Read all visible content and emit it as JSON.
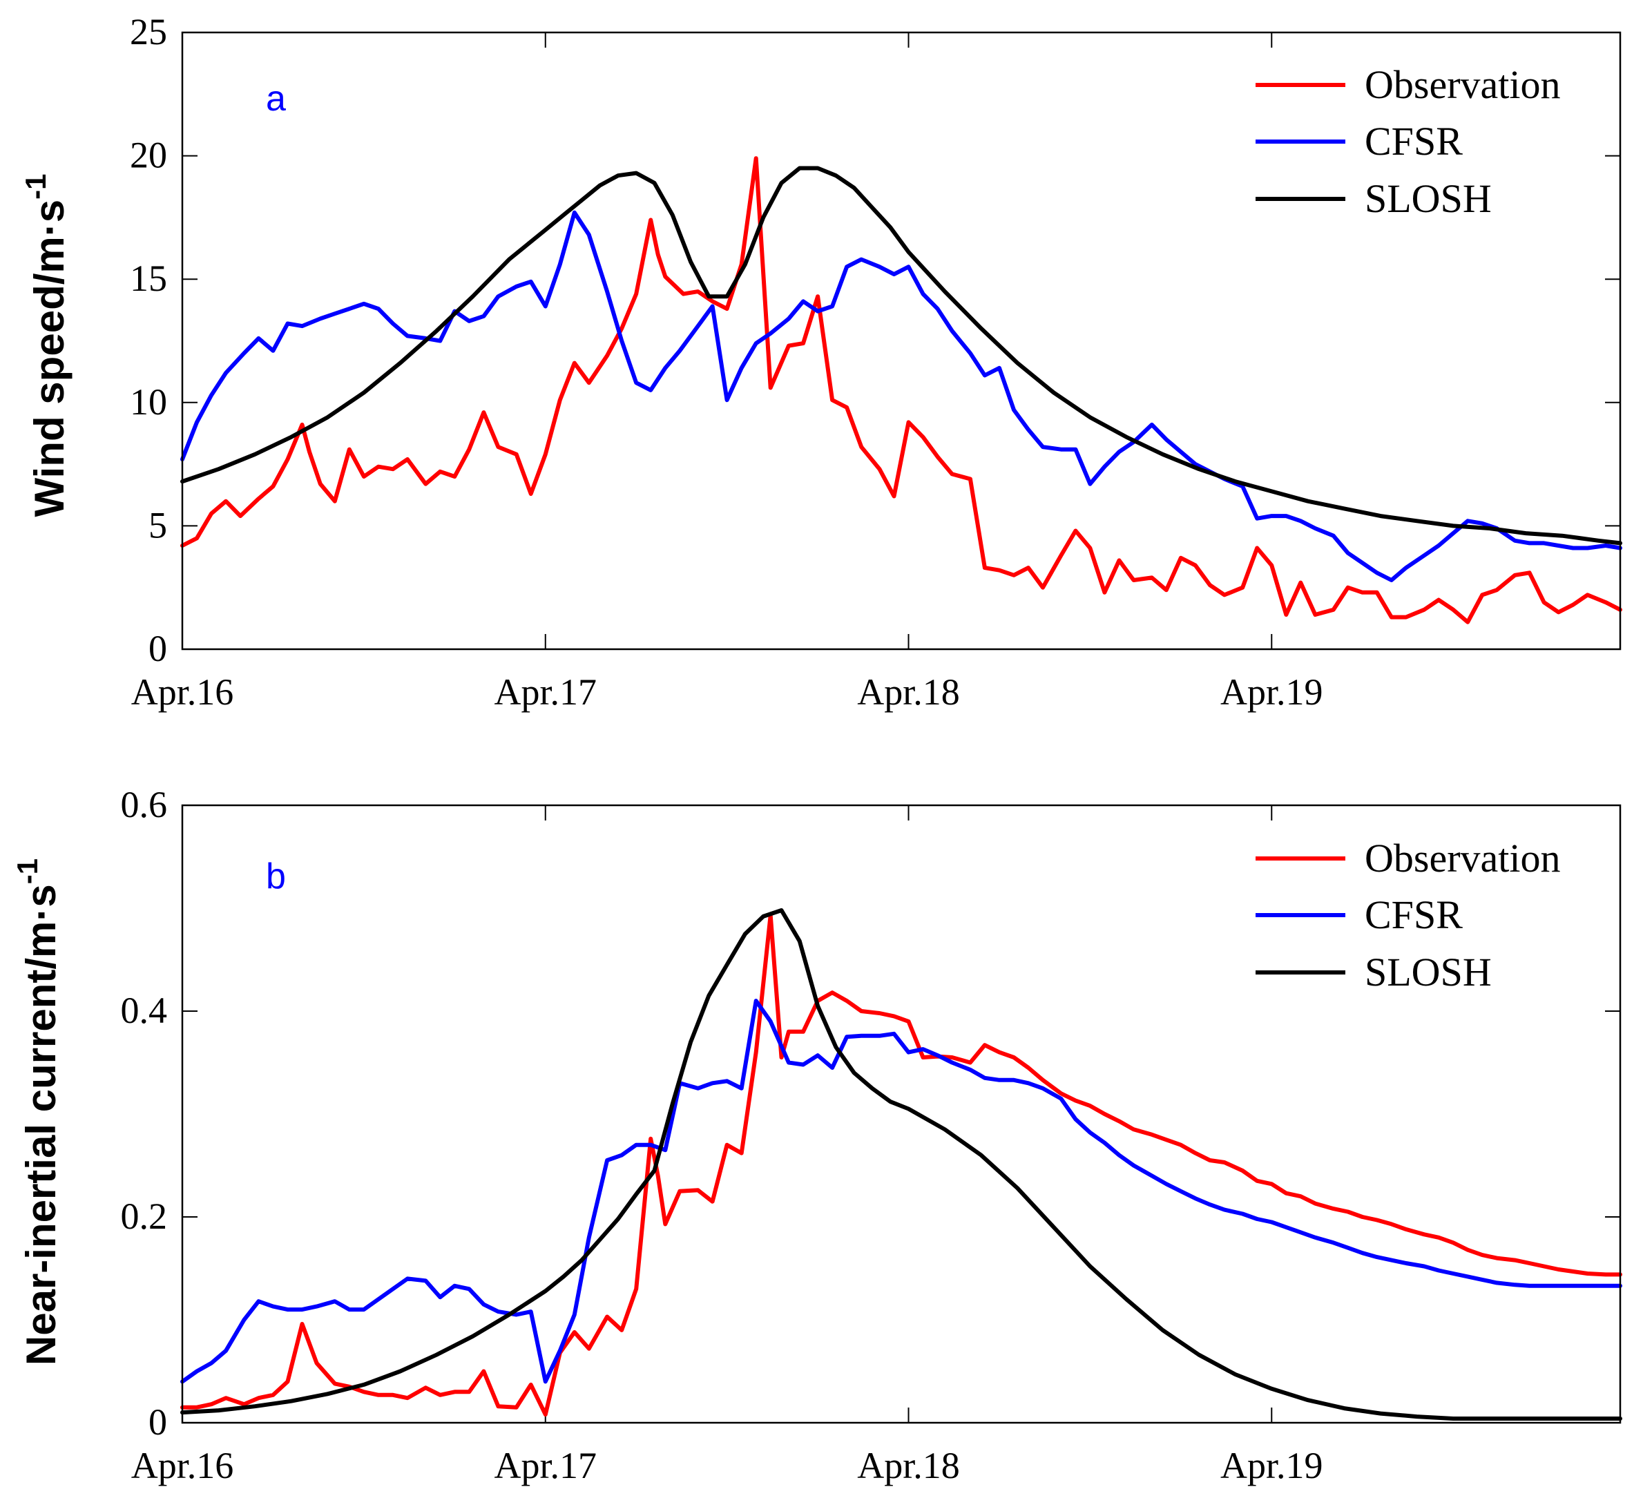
{
  "chart_data": [
    {
      "type": "line",
      "panel_label": "a",
      "ylabel": "Wind speed/m·s",
      "ylabel_sup": "-1",
      "ylim": [
        0,
        25
      ],
      "yticks": [
        0,
        5,
        10,
        15,
        20,
        25
      ],
      "xticks": [
        {
          "label": "Apr.16",
          "day": 0
        },
        {
          "label": "Apr.17",
          "day": 1
        },
        {
          "label": "Apr.18",
          "day": 2
        },
        {
          "label": "Apr.19",
          "day": 3
        }
      ],
      "xlim_days": [
        0,
        3.96
      ],
      "legend_position": "top-right",
      "series": [
        {
          "name": "Observation",
          "color": "#ff0000",
          "x": [
            0,
            0.04,
            0.08,
            0.12,
            0.16,
            0.21,
            0.25,
            0.29,
            0.33,
            0.35,
            0.38,
            0.42,
            0.46,
            0.5,
            0.54,
            0.58,
            0.62,
            0.67,
            0.71,
            0.75,
            0.79,
            0.83,
            0.87,
            0.92,
            0.96,
            1.0,
            1.04,
            1.08,
            1.12,
            1.17,
            1.21,
            1.25,
            1.29,
            1.31,
            1.33,
            1.38,
            1.42,
            1.46,
            1.5,
            1.54,
            1.58,
            1.62,
            1.67,
            1.71,
            1.75,
            1.79,
            1.83,
            1.87,
            1.92,
            1.96,
            2.0,
            2.04,
            2.08,
            2.12,
            2.17,
            2.21,
            2.25,
            2.29,
            2.33,
            2.37,
            2.42,
            2.46,
            2.5,
            2.54,
            2.58,
            2.62,
            2.67,
            2.71,
            2.75,
            2.79,
            2.83,
            2.87,
            2.92,
            2.96,
            3.0,
            3.04,
            3.08,
            3.12,
            3.17,
            3.21,
            3.25,
            3.29,
            3.33,
            3.37,
            3.42,
            3.46,
            3.5,
            3.54,
            3.58,
            3.62,
            3.67,
            3.71,
            3.75,
            3.79,
            3.83,
            3.87,
            3.92,
            3.96
          ],
          "y": [
            4.2,
            4.5,
            5.5,
            6.0,
            5.4,
            6.1,
            6.6,
            7.7,
            9.1,
            8.0,
            6.7,
            6.0,
            8.1,
            7.0,
            7.4,
            7.3,
            7.7,
            6.7,
            7.2,
            7.0,
            8.1,
            9.6,
            8.2,
            7.9,
            6.3,
            7.9,
            10.1,
            11.6,
            10.8,
            11.9,
            13.0,
            14.4,
            17.4,
            16.0,
            15.1,
            14.4,
            14.5,
            14.1,
            13.8,
            15.6,
            19.9,
            10.6,
            12.3,
            12.4,
            14.3,
            10.1,
            9.8,
            8.2,
            7.3,
            6.2,
            9.2,
            8.6,
            7.8,
            7.1,
            6.9,
            3.3,
            3.2,
            3.0,
            3.3,
            2.5,
            3.8,
            4.8,
            4.1,
            2.3,
            3.6,
            2.8,
            2.9,
            2.4,
            3.7,
            3.4,
            2.6,
            2.2,
            2.5,
            4.1,
            3.4,
            1.4,
            2.7,
            1.4,
            1.6,
            2.5,
            2.3,
            2.3,
            1.3,
            1.3,
            1.6,
            2.0,
            1.6,
            1.1,
            2.2,
            2.4,
            3.0,
            3.1,
            1.9,
            1.5,
            1.8,
            2.2,
            1.9,
            1.6
          ]
        },
        {
          "name": "CFSR",
          "color": "#0000ff",
          "x": [
            0,
            0.04,
            0.08,
            0.12,
            0.17,
            0.21,
            0.25,
            0.29,
            0.33,
            0.38,
            0.42,
            0.46,
            0.5,
            0.54,
            0.58,
            0.62,
            0.67,
            0.71,
            0.75,
            0.79,
            0.83,
            0.87,
            0.92,
            0.96,
            1.0,
            1.04,
            1.08,
            1.12,
            1.17,
            1.21,
            1.25,
            1.29,
            1.33,
            1.37,
            1.42,
            1.46,
            1.5,
            1.54,
            1.58,
            1.62,
            1.67,
            1.71,
            1.75,
            1.79,
            1.83,
            1.87,
            1.92,
            1.96,
            2.0,
            2.04,
            2.08,
            2.12,
            2.17,
            2.21,
            2.25,
            2.29,
            2.33,
            2.37,
            2.42,
            2.46,
            2.5,
            2.54,
            2.58,
            2.62,
            2.67,
            2.71,
            2.75,
            2.79,
            2.83,
            2.87,
            2.92,
            2.96,
            3.0,
            3.04,
            3.08,
            3.12,
            3.17,
            3.21,
            3.25,
            3.29,
            3.33,
            3.37,
            3.42,
            3.46,
            3.5,
            3.54,
            3.58,
            3.62,
            3.67,
            3.71,
            3.75,
            3.79,
            3.83,
            3.87,
            3.92,
            3.96
          ],
          "y": [
            7.7,
            9.2,
            10.3,
            11.2,
            12.0,
            12.6,
            12.1,
            13.2,
            13.1,
            13.4,
            13.6,
            13.8,
            14.0,
            13.8,
            13.2,
            12.7,
            12.6,
            12.5,
            13.7,
            13.3,
            13.5,
            14.3,
            14.7,
            14.9,
            13.9,
            15.6,
            17.7,
            16.8,
            14.5,
            12.5,
            10.8,
            10.5,
            11.4,
            12.1,
            13.1,
            13.9,
            10.1,
            11.4,
            12.4,
            12.8,
            13.4,
            14.1,
            13.7,
            13.9,
            15.5,
            15.8,
            15.5,
            15.2,
            15.5,
            14.4,
            13.8,
            12.9,
            12.0,
            11.1,
            11.4,
            9.7,
            8.9,
            8.2,
            8.1,
            8.1,
            6.7,
            7.4,
            8.0,
            8.4,
            9.1,
            8.5,
            8.0,
            7.5,
            7.2,
            6.9,
            6.6,
            5.3,
            5.4,
            5.4,
            5.2,
            4.9,
            4.6,
            3.9,
            3.5,
            3.1,
            2.8,
            3.3,
            3.8,
            4.2,
            4.7,
            5.2,
            5.1,
            4.9,
            4.4,
            4.3,
            4.3,
            4.2,
            4.1,
            4.1,
            4.2,
            4.1
          ]
        },
        {
          "name": "SLOSH",
          "color": "#000000",
          "x": [
            0,
            0.1,
            0.2,
            0.3,
            0.4,
            0.5,
            0.6,
            0.7,
            0.8,
            0.9,
            1.0,
            1.05,
            1.1,
            1.15,
            1.2,
            1.25,
            1.3,
            1.35,
            1.4,
            1.45,
            1.5,
            1.55,
            1.6,
            1.65,
            1.7,
            1.75,
            1.8,
            1.85,
            1.9,
            1.95,
            2.0,
            2.1,
            2.2,
            2.3,
            2.4,
            2.5,
            2.6,
            2.7,
            2.8,
            2.9,
            3.0,
            3.1,
            3.2,
            3.3,
            3.4,
            3.5,
            3.6,
            3.7,
            3.8,
            3.9,
            3.96
          ],
          "y": [
            6.8,
            7.3,
            7.9,
            8.6,
            9.4,
            10.4,
            11.6,
            12.9,
            14.3,
            15.8,
            17.0,
            17.6,
            18.2,
            18.8,
            19.2,
            19.3,
            18.9,
            17.6,
            15.7,
            14.3,
            14.3,
            15.6,
            17.5,
            18.9,
            19.5,
            19.5,
            19.2,
            18.7,
            17.9,
            17.1,
            16.1,
            14.5,
            13.0,
            11.6,
            10.4,
            9.4,
            8.6,
            7.9,
            7.3,
            6.8,
            6.4,
            6.0,
            5.7,
            5.4,
            5.2,
            5.0,
            4.9,
            4.7,
            4.6,
            4.4,
            4.3
          ]
        }
      ]
    },
    {
      "type": "line",
      "panel_label": "b",
      "ylabel": "Near-inertial current/m·s",
      "ylabel_sup": "-1",
      "ylim": [
        0,
        0.6
      ],
      "yticks": [
        0,
        0.2,
        0.4,
        0.6
      ],
      "xticks": [
        {
          "label": "Apr.16",
          "day": 0
        },
        {
          "label": "Apr.17",
          "day": 1
        },
        {
          "label": "Apr.18",
          "day": 2
        },
        {
          "label": "Apr.19",
          "day": 3
        }
      ],
      "xlim_days": [
        0,
        3.96
      ],
      "legend_position": "top-right",
      "series": [
        {
          "name": "Observation",
          "color": "#ff0000",
          "x": [
            0,
            0.04,
            0.08,
            0.12,
            0.17,
            0.21,
            0.25,
            0.29,
            0.33,
            0.37,
            0.42,
            0.46,
            0.5,
            0.54,
            0.58,
            0.62,
            0.67,
            0.71,
            0.75,
            0.79,
            0.83,
            0.87,
            0.92,
            0.96,
            1.0,
            1.04,
            1.08,
            1.12,
            1.17,
            1.21,
            1.25,
            1.29,
            1.31,
            1.33,
            1.37,
            1.42,
            1.46,
            1.5,
            1.54,
            1.58,
            1.62,
            1.65,
            1.67,
            1.71,
            1.75,
            1.79,
            1.83,
            1.87,
            1.92,
            1.96,
            2.0,
            2.04,
            2.08,
            2.12,
            2.17,
            2.21,
            2.25,
            2.29,
            2.33,
            2.37,
            2.42,
            2.46,
            2.5,
            2.54,
            2.58,
            2.62,
            2.67,
            2.71,
            2.75,
            2.79,
            2.83,
            2.87,
            2.92,
            2.96,
            3.0,
            3.04,
            3.08,
            3.12,
            3.17,
            3.21,
            3.25,
            3.29,
            3.33,
            3.37,
            3.42,
            3.46,
            3.5,
            3.54,
            3.58,
            3.62,
            3.67,
            3.71,
            3.75,
            3.79,
            3.83,
            3.87,
            3.92,
            3.96
          ],
          "y": [
            0.015,
            0.015,
            0.018,
            0.024,
            0.018,
            0.024,
            0.027,
            0.04,
            0.096,
            0.058,
            0.038,
            0.035,
            0.03,
            0.027,
            0.027,
            0.024,
            0.034,
            0.027,
            0.03,
            0.03,
            0.05,
            0.016,
            0.015,
            0.037,
            0.008,
            0.068,
            0.088,
            0.072,
            0.103,
            0.09,
            0.13,
            0.276,
            0.24,
            0.193,
            0.225,
            0.226,
            0.215,
            0.27,
            0.262,
            0.36,
            0.493,
            0.355,
            0.38,
            0.38,
            0.41,
            0.418,
            0.41,
            0.4,
            0.398,
            0.395,
            0.39,
            0.355,
            0.356,
            0.355,
            0.35,
            0.367,
            0.36,
            0.355,
            0.345,
            0.333,
            0.32,
            0.313,
            0.308,
            0.3,
            0.293,
            0.285,
            0.28,
            0.275,
            0.27,
            0.262,
            0.255,
            0.253,
            0.245,
            0.235,
            0.232,
            0.223,
            0.22,
            0.213,
            0.208,
            0.205,
            0.2,
            0.197,
            0.193,
            0.188,
            0.183,
            0.18,
            0.175,
            0.168,
            0.163,
            0.16,
            0.158,
            0.155,
            0.152,
            0.149,
            0.147,
            0.145,
            0.144,
            0.144
          ]
        },
        {
          "name": "CFSR",
          "color": "#0000ff",
          "x": [
            0,
            0.04,
            0.08,
            0.12,
            0.17,
            0.21,
            0.25,
            0.29,
            0.33,
            0.37,
            0.42,
            0.46,
            0.5,
            0.54,
            0.58,
            0.62,
            0.67,
            0.71,
            0.75,
            0.79,
            0.83,
            0.87,
            0.92,
            0.96,
            1.0,
            1.04,
            1.08,
            1.12,
            1.17,
            1.21,
            1.25,
            1.29,
            1.33,
            1.37,
            1.42,
            1.46,
            1.5,
            1.54,
            1.58,
            1.62,
            1.67,
            1.71,
            1.75,
            1.79,
            1.83,
            1.87,
            1.92,
            1.96,
            2.0,
            2.04,
            2.08,
            2.12,
            2.17,
            2.21,
            2.25,
            2.29,
            2.33,
            2.37,
            2.42,
            2.46,
            2.5,
            2.54,
            2.58,
            2.62,
            2.67,
            2.71,
            2.75,
            2.79,
            2.83,
            2.87,
            2.92,
            2.96,
            3.0,
            3.04,
            3.08,
            3.12,
            3.17,
            3.21,
            3.25,
            3.29,
            3.33,
            3.37,
            3.42,
            3.46,
            3.5,
            3.54,
            3.58,
            3.62,
            3.67,
            3.71,
            3.75,
            3.79,
            3.83,
            3.87,
            3.92,
            3.96
          ],
          "y": [
            0.04,
            0.05,
            0.058,
            0.07,
            0.1,
            0.118,
            0.113,
            0.11,
            0.11,
            0.113,
            0.118,
            0.11,
            0.11,
            0.12,
            0.13,
            0.14,
            0.138,
            0.122,
            0.133,
            0.13,
            0.115,
            0.108,
            0.105,
            0.108,
            0.04,
            0.07,
            0.105,
            0.18,
            0.255,
            0.26,
            0.27,
            0.27,
            0.265,
            0.33,
            0.325,
            0.33,
            0.332,
            0.325,
            0.41,
            0.39,
            0.35,
            0.348,
            0.357,
            0.345,
            0.375,
            0.376,
            0.376,
            0.378,
            0.36,
            0.363,
            0.357,
            0.35,
            0.343,
            0.335,
            0.333,
            0.333,
            0.33,
            0.325,
            0.315,
            0.295,
            0.282,
            0.272,
            0.26,
            0.25,
            0.24,
            0.232,
            0.225,
            0.218,
            0.212,
            0.207,
            0.203,
            0.198,
            0.195,
            0.19,
            0.185,
            0.18,
            0.175,
            0.17,
            0.165,
            0.161,
            0.158,
            0.155,
            0.152,
            0.148,
            0.145,
            0.142,
            0.139,
            0.136,
            0.134,
            0.133,
            0.133,
            0.133,
            0.133,
            0.133,
            0.133,
            0.133
          ]
        },
        {
          "name": "SLOSH",
          "color": "#000000",
          "x": [
            0,
            0.1,
            0.2,
            0.3,
            0.4,
            0.5,
            0.6,
            0.7,
            0.8,
            0.9,
            1.0,
            1.05,
            1.1,
            1.15,
            1.2,
            1.25,
            1.3,
            1.35,
            1.4,
            1.45,
            1.5,
            1.55,
            1.6,
            1.65,
            1.7,
            1.75,
            1.8,
            1.85,
            1.9,
            1.95,
            2.0,
            2.1,
            2.2,
            2.3,
            2.4,
            2.5,
            2.6,
            2.7,
            2.8,
            2.9,
            3.0,
            3.1,
            3.2,
            3.3,
            3.4,
            3.5,
            3.6,
            3.7,
            3.8,
            3.9,
            3.96
          ],
          "y": [
            0.01,
            0.012,
            0.016,
            0.021,
            0.028,
            0.037,
            0.05,
            0.066,
            0.084,
            0.105,
            0.128,
            0.142,
            0.158,
            0.178,
            0.198,
            0.222,
            0.245,
            0.31,
            0.37,
            0.415,
            0.445,
            0.475,
            0.492,
            0.498,
            0.468,
            0.405,
            0.365,
            0.34,
            0.325,
            0.312,
            0.305,
            0.285,
            0.26,
            0.228,
            0.19,
            0.152,
            0.12,
            0.09,
            0.066,
            0.047,
            0.033,
            0.022,
            0.014,
            0.009,
            0.006,
            0.004,
            0.004,
            0.004,
            0.004,
            0.004,
            0.004
          ]
        }
      ]
    }
  ]
}
